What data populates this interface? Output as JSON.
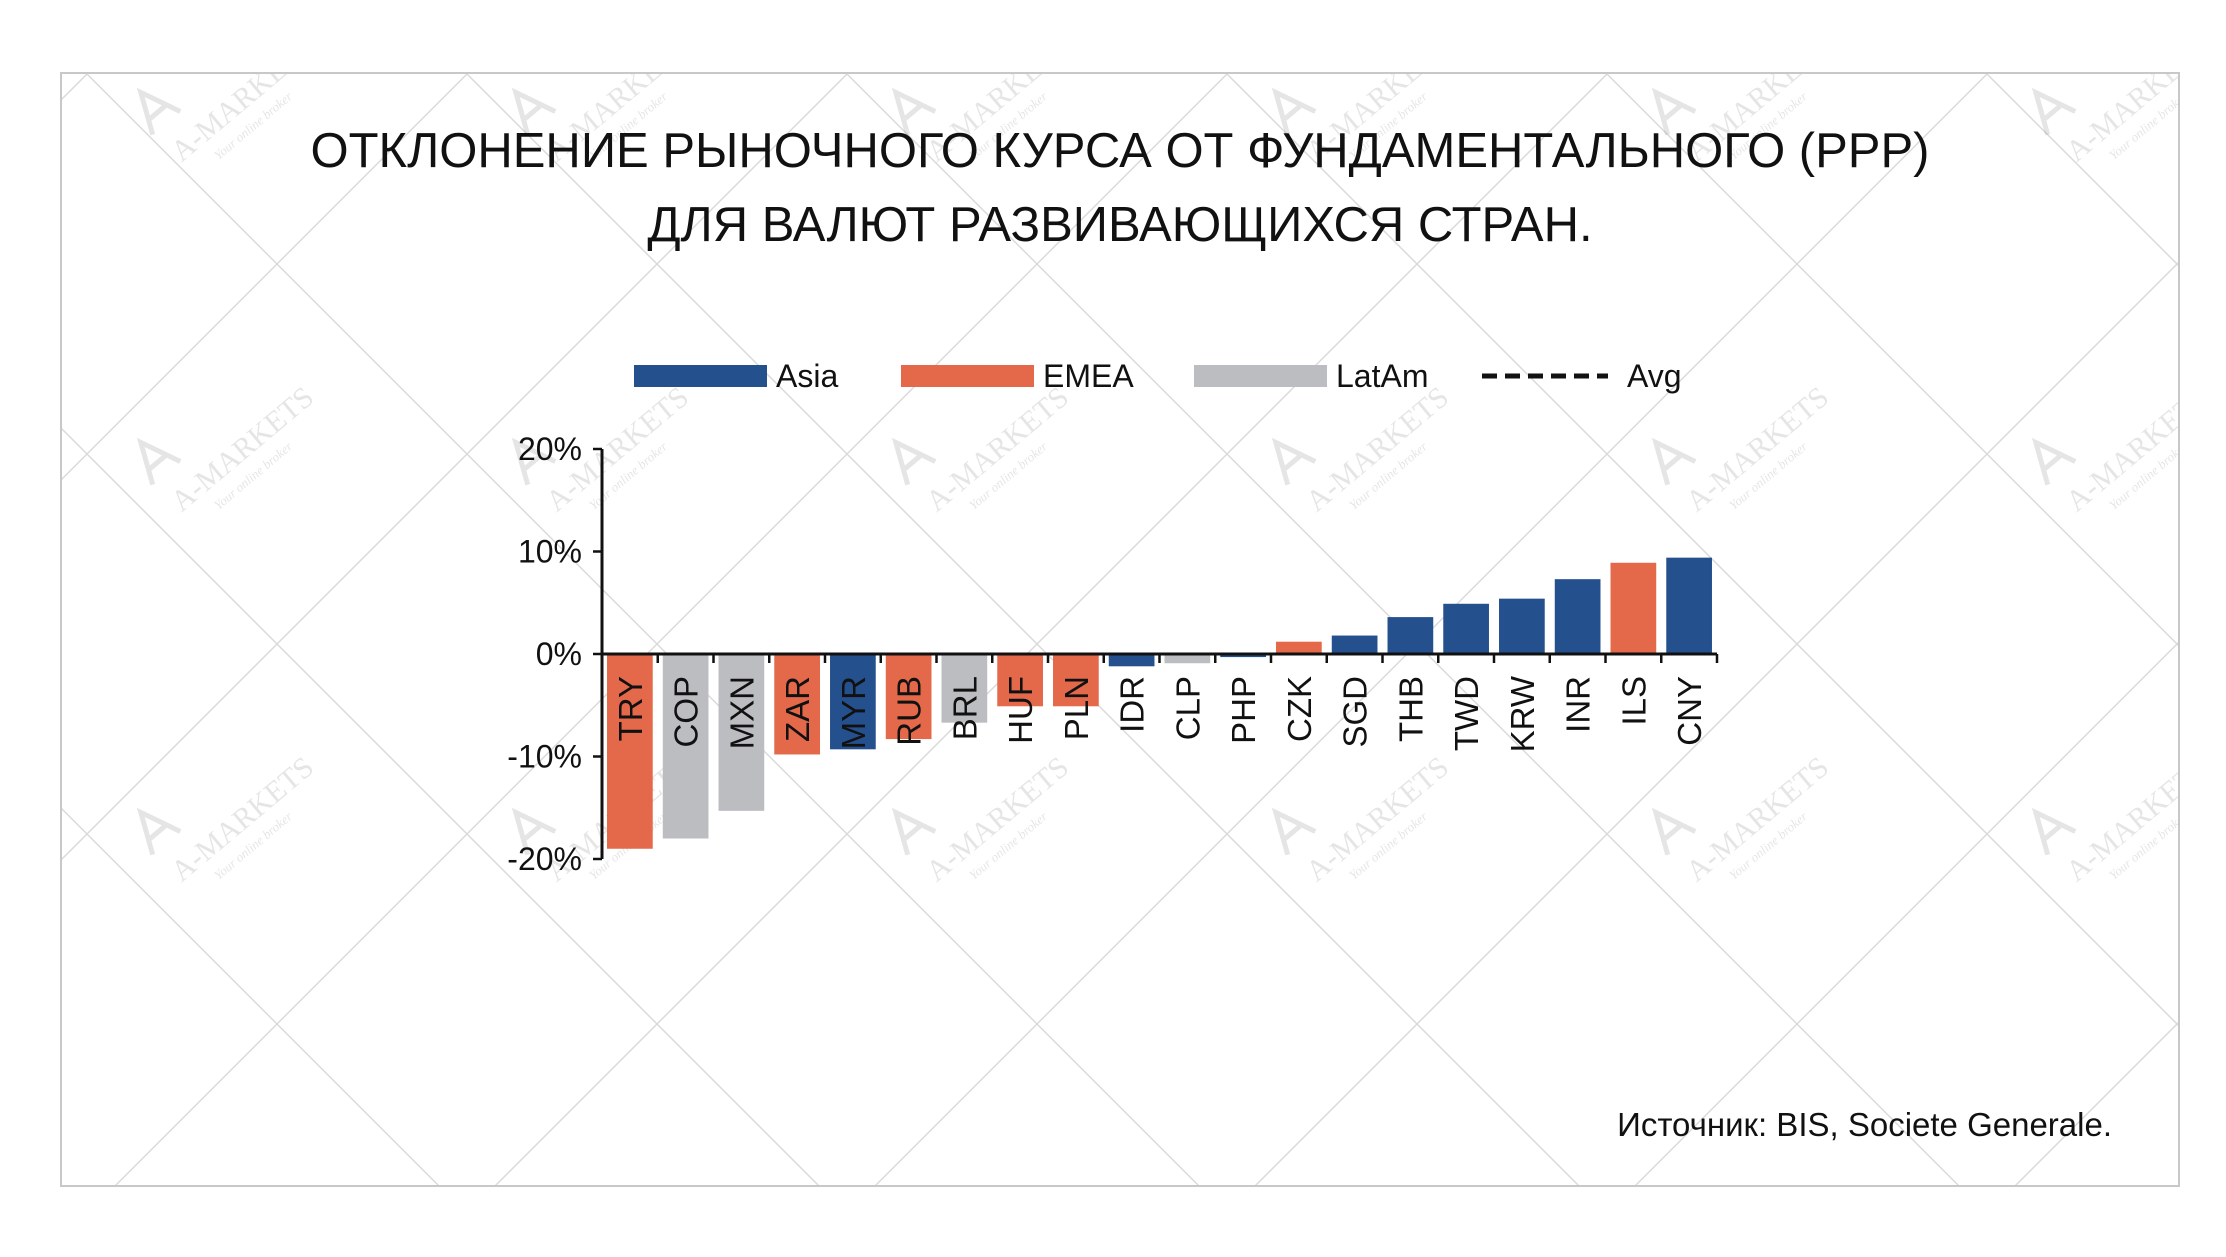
{
  "title_line1": "ОТКЛОНЕНИЕ РЫНОЧНОГО КУРСА ОТ ФУНДАМЕНТАЛЬНОГО (PPP)",
  "title_line2": "ДЛЯ ВАЛЮТ РАЗВИВАЮЩИХСЯ СТРАН.",
  "source": "Источник: BIS, Societe Generale.",
  "watermark": {
    "brand": "A-MARKETS",
    "tagline": "Your online broker"
  },
  "colors": {
    "Asia": "#25508e",
    "EMEA": "#e4684a",
    "LatAm": "#bcbdc1",
    "axis": "#111111"
  },
  "legend": [
    {
      "label": "Asia",
      "key": "Asia"
    },
    {
      "label": "EMEA",
      "key": "EMEA"
    },
    {
      "label": "LatAm",
      "key": "LatAm"
    },
    {
      "label": "Avg",
      "key": "Avg"
    }
  ],
  "chart_data": {
    "type": "bar",
    "title": "ОТКЛОНЕНИЕ РЫНОЧНОГО КУРСА ОТ ФУНДАМЕНТАЛЬНОГО (PPP) ДЛЯ ВАЛЮТ РАЗВИВАЮЩИХСЯ СТРАН.",
    "xlabel": "",
    "ylabel": "",
    "ylim": [
      -20,
      20
    ],
    "yticks": [
      20,
      10,
      0,
      -10,
      -20
    ],
    "ytick_labels": [
      "20%",
      "10%",
      "0%",
      "-10%",
      "-20%"
    ],
    "grid": false,
    "legend_position": "top",
    "categories": [
      "TRY",
      "COP",
      "MXN",
      "ZAR",
      "MYR",
      "RUB",
      "BRL",
      "HUF",
      "PLN",
      "IDR",
      "CLP",
      "PHP",
      "CZK",
      "SGD",
      "THB",
      "TWD",
      "KRW",
      "INR",
      "ILS",
      "CNY"
    ],
    "values": [
      -19,
      -18,
      -15.3,
      -9.8,
      -9.3,
      -8.3,
      -6.7,
      -5.1,
      -5.1,
      -1.2,
      -0.9,
      -0.3,
      1.2,
      1.8,
      3.6,
      4.9,
      5.4,
      7.3,
      8.9,
      9.4
    ],
    "groups": [
      "EMEA",
      "LatAm",
      "LatAm",
      "EMEA",
      "Asia",
      "EMEA",
      "LatAm",
      "EMEA",
      "EMEA",
      "Asia",
      "LatAm",
      "Asia",
      "EMEA",
      "Asia",
      "Asia",
      "Asia",
      "Asia",
      "Asia",
      "EMEA",
      "Asia"
    ],
    "series": [
      {
        "name": "Asia"
      },
      {
        "name": "EMEA"
      },
      {
        "name": "LatAm"
      },
      {
        "name": "Avg"
      }
    ]
  }
}
